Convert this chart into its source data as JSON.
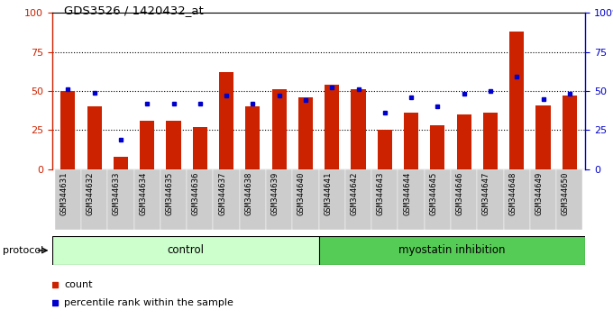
{
  "title": "GDS3526 / 1420432_at",
  "samples": [
    "GSM344631",
    "GSM344632",
    "GSM344633",
    "GSM344634",
    "GSM344635",
    "GSM344636",
    "GSM344637",
    "GSM344638",
    "GSM344639",
    "GSM344640",
    "GSM344641",
    "GSM344642",
    "GSM344643",
    "GSM344644",
    "GSM344645",
    "GSM344646",
    "GSM344647",
    "GSM344648",
    "GSM344649",
    "GSM344650"
  ],
  "bar_heights": [
    50,
    40,
    8,
    31,
    31,
    27,
    62,
    40,
    51,
    46,
    54,
    51,
    25,
    36,
    28,
    35,
    36,
    88,
    41,
    47
  ],
  "blue_values": [
    51,
    49,
    19,
    42,
    42,
    42,
    47,
    42,
    47,
    44,
    52,
    51,
    36,
    46,
    40,
    48,
    50,
    59,
    45,
    48
  ],
  "control_count": 10,
  "myostatin_count": 10,
  "bar_color": "#cc2200",
  "blue_color": "#0000cc",
  "control_bg": "#ccffcc",
  "myostatin_bg": "#55cc55",
  "xticklabel_bg": "#cccccc",
  "ylim": [
    0,
    100
  ],
  "legend_count_label": "count",
  "legend_pct_label": "percentile rank within the sample",
  "protocol_label": "protocol",
  "control_label": "control",
  "myostatin_label": "myostatin inhibition"
}
